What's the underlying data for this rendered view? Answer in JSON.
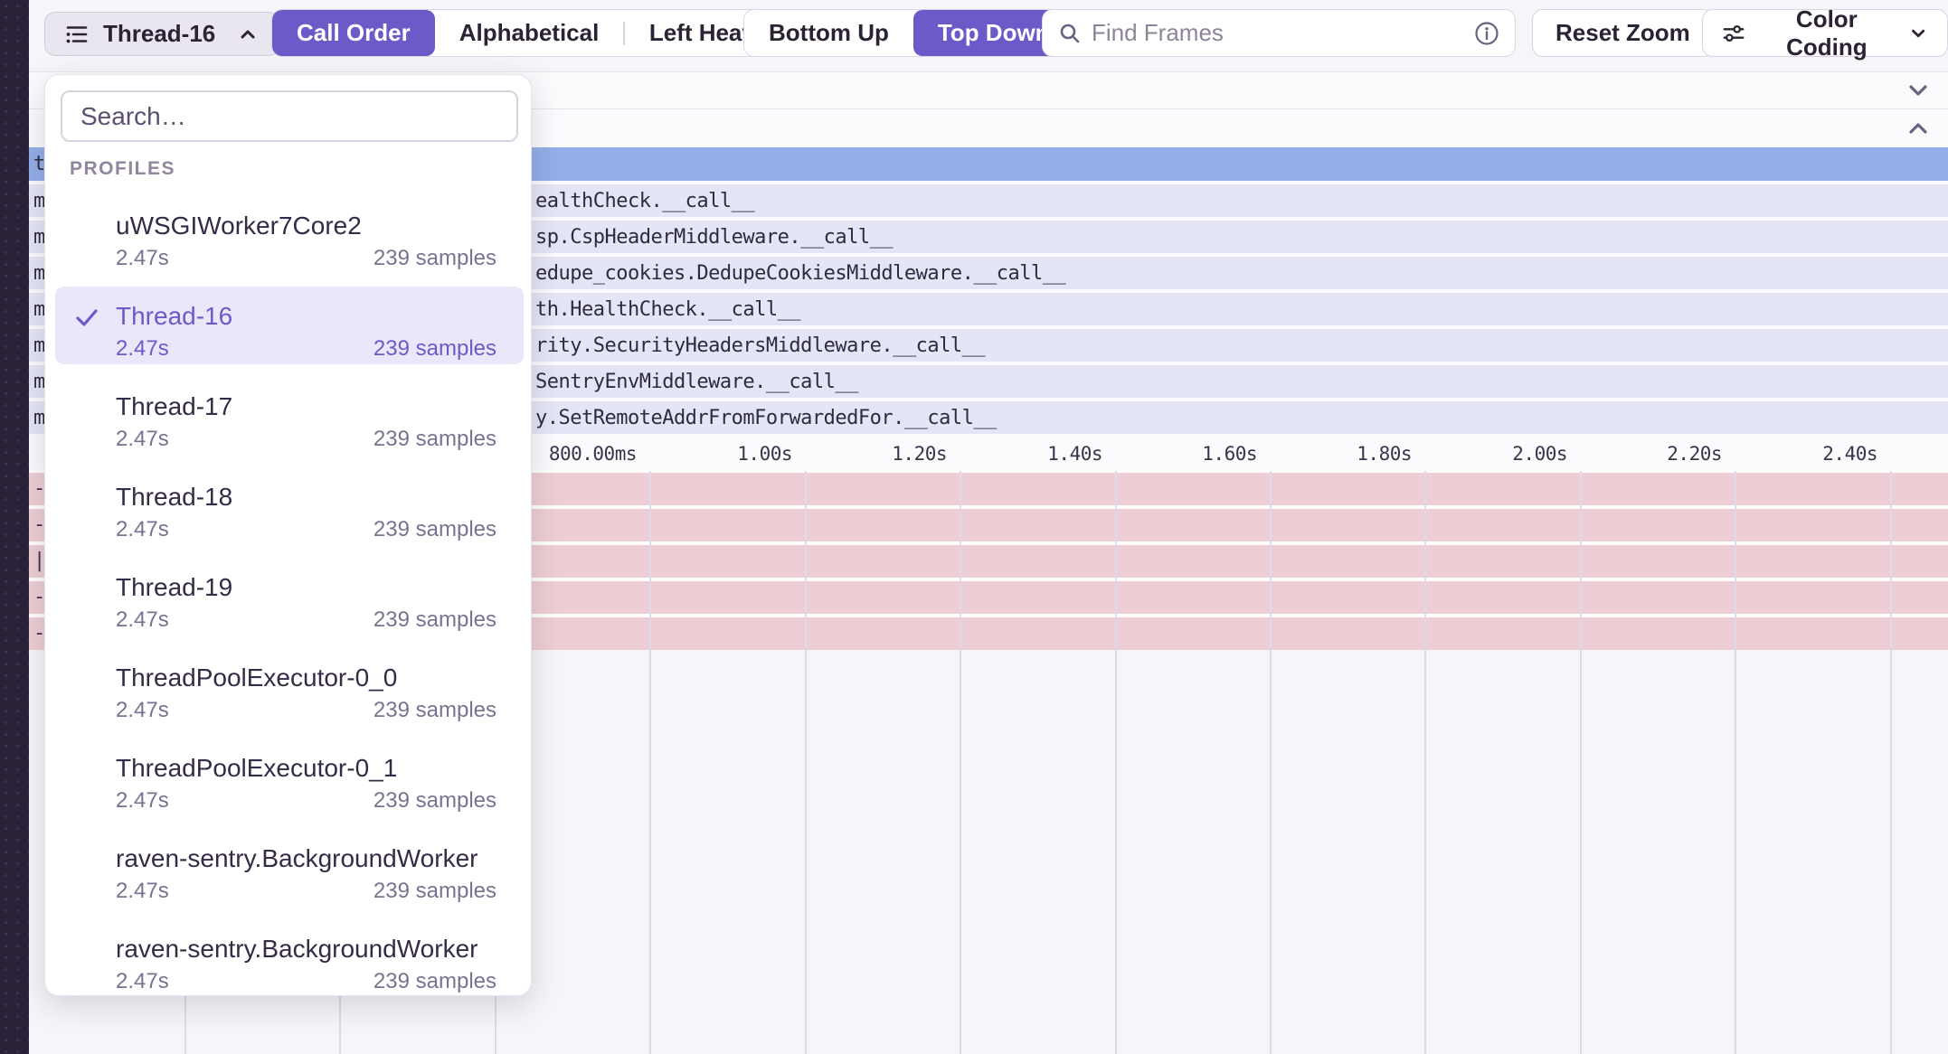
{
  "toolbar": {
    "thread_selector": {
      "label": "Thread-16",
      "icon": "list-icon",
      "chevron": "chevron-up-icon"
    },
    "sort_tabs": [
      {
        "label": "Call Order",
        "active": true
      },
      {
        "label": "Alphabetical",
        "active": false
      },
      {
        "label": "Left Heavy",
        "active": false
      }
    ],
    "direction_tabs": [
      {
        "label": "Bottom Up",
        "active": false
      },
      {
        "label": "Top Down",
        "active": true
      }
    ],
    "find_frames": {
      "placeholder": "Find Frames",
      "icons": [
        "search-icon",
        "info-icon"
      ]
    },
    "reset_zoom_label": "Reset Zoom",
    "color_coding": {
      "label": "Color Coding",
      "icons": [
        "sliders-icon",
        "chevron-down-icon"
      ]
    }
  },
  "dropdown": {
    "search_placeholder": "Search…",
    "section_label": "PROFILES",
    "items": [
      {
        "name": "uWSGIWorker7Core2",
        "duration": "2.47s",
        "samples": "239 samples",
        "selected": false
      },
      {
        "name": "Thread-16",
        "duration": "2.47s",
        "samples": "239 samples",
        "selected": true
      },
      {
        "name": "Thread-17",
        "duration": "2.47s",
        "samples": "239 samples",
        "selected": false
      },
      {
        "name": "Thread-18",
        "duration": "2.47s",
        "samples": "239 samples",
        "selected": false
      },
      {
        "name": "Thread-19",
        "duration": "2.47s",
        "samples": "239 samples",
        "selected": false
      },
      {
        "name": "ThreadPoolExecutor-0_0",
        "duration": "2.47s",
        "samples": "239 samples",
        "selected": false
      },
      {
        "name": "ThreadPoolExecutor-0_1",
        "duration": "2.47s",
        "samples": "239 samples",
        "selected": false
      },
      {
        "name": "raven-sentry.BackgroundWorker",
        "duration": "2.47s",
        "samples": "239 samples",
        "selected": false
      },
      {
        "name": "raven-sentry.BackgroundWorker",
        "duration": "2.47s",
        "samples": "239 samples",
        "selected": false
      }
    ]
  },
  "flamegraph": {
    "section_toggles": [
      "chevron-down-icon",
      "chevron-up-icon"
    ],
    "rows": [
      {
        "left_fragment": "t",
        "text": "",
        "style": "selected"
      },
      {
        "left_fragment": "m",
        "text": "ealthCheck.__call__",
        "style": "frame"
      },
      {
        "left_fragment": "m",
        "text": "sp.CspHeaderMiddleware.__call__",
        "style": "frame"
      },
      {
        "left_fragment": "m",
        "text": "edupe_cookies.DedupeCookiesMiddleware.__call__",
        "style": "frame"
      },
      {
        "left_fragment": "m",
        "text": "th.HealthCheck.__call__",
        "style": "frame"
      },
      {
        "left_fragment": "m",
        "text": "rity.SecurityHeadersMiddleware.__call__",
        "style": "frame"
      },
      {
        "left_fragment": "m",
        "text": "SentryEnvMiddleware.__call__",
        "style": "frame"
      },
      {
        "left_fragment": "m",
        "text": "y.SetRemoteAddrFromForwardedFor.__call__",
        "style": "frame"
      }
    ],
    "time_axis": {
      "tick_labels": [
        "800.00ms",
        "1.00s",
        "1.20s",
        "1.40s",
        "1.60s",
        "1.80s",
        "2.00s",
        "2.20s",
        "2.40s"
      ]
    },
    "minimap_rows": {
      "count": 5,
      "left_marks": [
        "-",
        "-",
        "|",
        "-",
        "-"
      ]
    }
  },
  "colors": {
    "accent_purple": "#6c5ac8",
    "selected_frame_blue": "#94aee9",
    "frame_lavender": "#e4e6f5",
    "minimap_pink": "#ecced4",
    "sidebar_dark": "#2b2138"
  }
}
